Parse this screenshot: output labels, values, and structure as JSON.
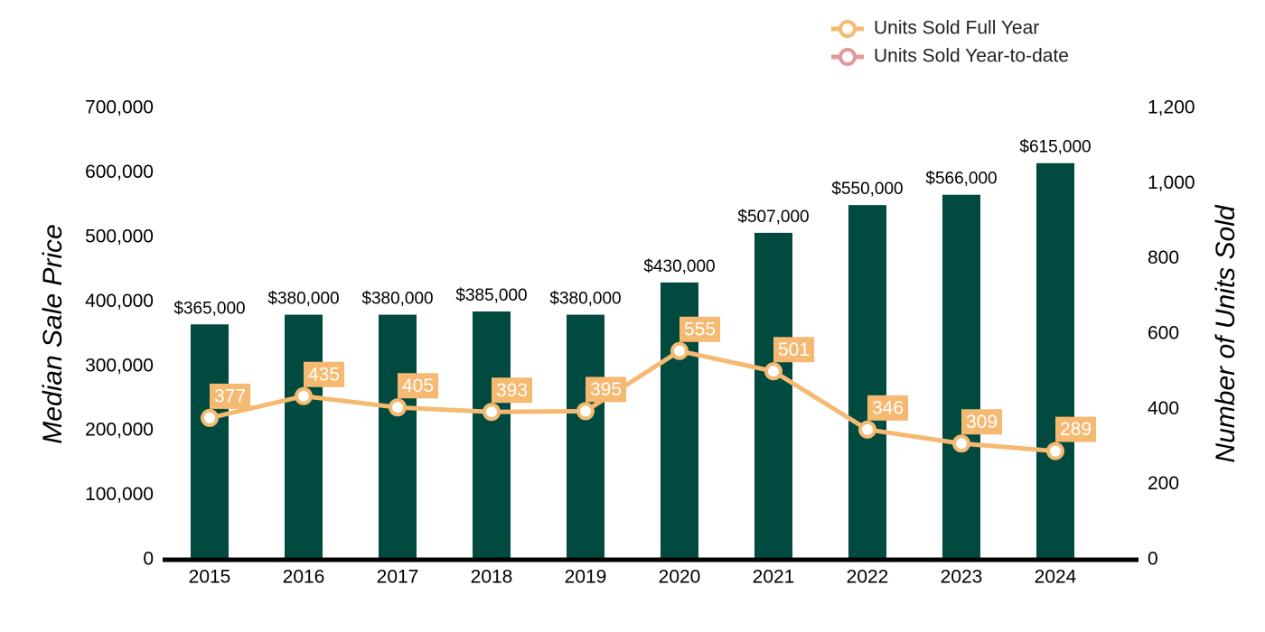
{
  "chart_data": {
    "type": "bar",
    "ylabel": "Median Sale Price",
    "y2label": "Number of Units Sold",
    "categories": [
      "2015",
      "2016",
      "2017",
      "2018",
      "2019",
      "2020",
      "2021",
      "2022",
      "2023",
      "2024"
    ],
    "ylim": [
      0,
      700000
    ],
    "yticks": [
      0,
      {
        "value": 100000,
        "label": "100,000"
      },
      {
        "value": 200000,
        "label": "200,000"
      },
      {
        "value": 300000,
        "label": "300,000"
      },
      {
        "value": 400000,
        "label": "400,000"
      },
      {
        "value": 500000,
        "label": "500,000"
      },
      {
        "value": 600000,
        "label": "600,000"
      },
      {
        "value": 700000,
        "label": "700,000"
      }
    ],
    "y2lim": [
      0,
      1200
    ],
    "y2ticks": [
      0,
      200,
      400,
      600,
      800,
      {
        "value": 1000,
        "label": "1,000"
      },
      {
        "value": 1200,
        "label": "1,200"
      }
    ],
    "legend": "top-right",
    "series": [
      {
        "type": "bar",
        "color": "#004a40",
        "values": [
          365000,
          380000,
          380000,
          385000,
          380000,
          430000,
          507000,
          550000,
          566000,
          615000
        ],
        "value_labels": [
          "$365,000",
          "$380,000",
          "$380,000",
          "$385,000",
          "$380,000",
          "$430,000",
          "$507,000",
          "$550,000",
          "$566,000",
          "$615,000"
        ]
      },
      {
        "type": "line",
        "axis": "y2",
        "name": "Units Sold Full Year",
        "color": "#f5b971",
        "values": [
          377,
          435,
          405,
          393,
          395,
          555,
          501,
          346,
          309,
          289
        ]
      },
      {
        "type": "line",
        "axis": "y2",
        "name": "Units Sold Year-to-date",
        "color": "#e09a9a",
        "values": [
          null,
          null,
          null,
          null,
          null,
          null,
          null,
          null,
          null,
          null
        ]
      }
    ]
  }
}
